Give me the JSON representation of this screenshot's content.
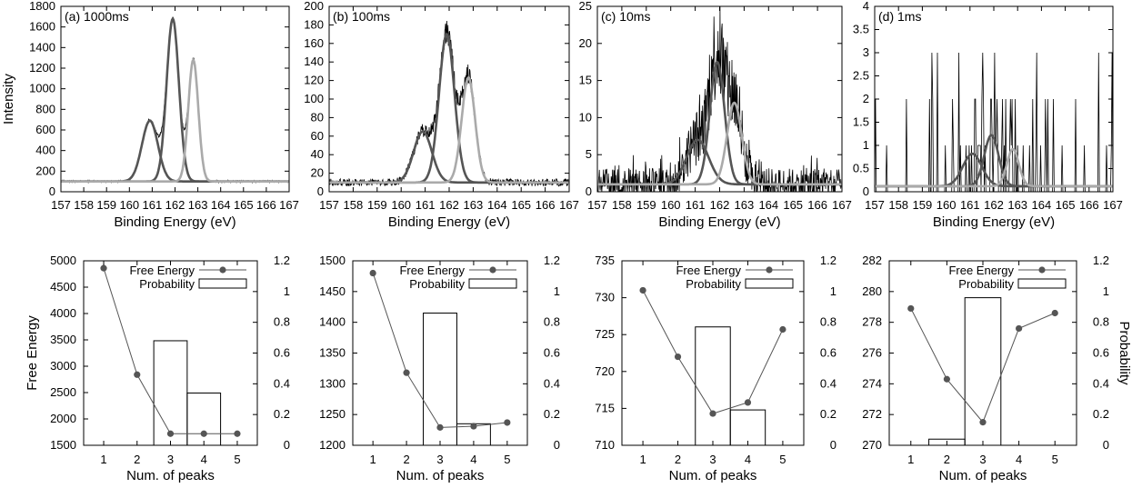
{
  "chart_data": [
    {
      "type": "line",
      "title": "(a) 1000ms",
      "xlabel": "Binding Energy (eV)",
      "ylabel": "Intensity",
      "xlim": [
        157,
        167
      ],
      "ylim": [
        0,
        1800
      ],
      "xticks": [
        157,
        158,
        159,
        160,
        161,
        162,
        163,
        164,
        165,
        166,
        167
      ],
      "yticks": [
        0,
        200,
        400,
        600,
        800,
        1000,
        1200,
        1400,
        1600,
        1800
      ],
      "grid": false,
      "baseline": 100,
      "components": [
        {
          "center": 160.9,
          "amplitude": 590,
          "sigma": 0.35,
          "color": "#555555"
        },
        {
          "center": 161.9,
          "amplitude": 1580,
          "sigma": 0.27,
          "color": "#555555"
        },
        {
          "center": 162.8,
          "amplitude": 1180,
          "sigma": 0.22,
          "color": "#aaaaaa"
        }
      ],
      "noise": 10
    },
    {
      "type": "line",
      "title": "(b) 100ms",
      "xlabel": "Binding Energy (eV)",
      "ylabel": "",
      "xlim": [
        157,
        167
      ],
      "ylim": [
        0,
        200
      ],
      "xticks": [
        157,
        158,
        159,
        160,
        161,
        162,
        163,
        164,
        165,
        166,
        167
      ],
      "yticks": [
        0,
        20,
        40,
        60,
        80,
        100,
        120,
        140,
        160,
        180,
        200
      ],
      "grid": false,
      "baseline": 10,
      "components": [
        {
          "center": 160.9,
          "amplitude": 55,
          "sigma": 0.38,
          "color": "#555555"
        },
        {
          "center": 161.9,
          "amplitude": 160,
          "sigma": 0.32,
          "color": "#555555"
        },
        {
          "center": 162.8,
          "amplitude": 113,
          "sigma": 0.28,
          "color": "#aaaaaa"
        }
      ],
      "noise": 4
    },
    {
      "type": "line",
      "title": "(c) 10ms",
      "xlabel": "Binding Energy (eV)",
      "ylabel": "",
      "xlim": [
        157,
        167
      ],
      "ylim": [
        0,
        25
      ],
      "xticks": [
        157,
        158,
        159,
        160,
        161,
        162,
        163,
        164,
        165,
        166,
        167
      ],
      "yticks": [
        0,
        5,
        10,
        15,
        20,
        25
      ],
      "grid": false,
      "baseline": 1,
      "components": [
        {
          "center": 161.1,
          "amplitude": 6,
          "sigma": 0.45,
          "color": "#555555"
        },
        {
          "center": 161.9,
          "amplitude": 16.5,
          "sigma": 0.3,
          "color": "#555555"
        },
        {
          "center": 162.6,
          "amplitude": 11,
          "sigma": 0.3,
          "color": "#aaaaaa"
        }
      ],
      "noise": 2.2
    },
    {
      "type": "line",
      "title": "(d) 1ms",
      "xlabel": "Binding Energy (eV)",
      "ylabel": "",
      "xlim": [
        157,
        167
      ],
      "ylim": [
        0,
        4
      ],
      "xticks": [
        157,
        158,
        159,
        160,
        161,
        162,
        163,
        164,
        165,
        166,
        167
      ],
      "yticks": [
        0,
        0.5,
        1,
        1.5,
        2,
        2.5,
        3,
        3.5,
        4
      ],
      "grid": false,
      "baseline": 0.12,
      "components": [
        {
          "center": 161.1,
          "amplitude": 0.7,
          "sigma": 0.4,
          "color": "#555555"
        },
        {
          "center": 161.9,
          "amplitude": 1.1,
          "sigma": 0.3,
          "color": "#555555"
        },
        {
          "center": 162.8,
          "amplitude": 0.8,
          "sigma": 0.25,
          "color": "#aaaaaa"
        }
      ],
      "noise": 0
    },
    {
      "type": "bar+line",
      "xlabel": "Num. of peaks",
      "ylabel": "Free Energy",
      "y2label": "",
      "x": [
        1,
        2,
        3,
        4,
        5
      ],
      "ylim": [
        1500,
        5000
      ],
      "yticks": [
        1500,
        2000,
        2500,
        3000,
        3500,
        4000,
        4500,
        5000
      ],
      "y2lim": [
        0,
        1.2
      ],
      "y2ticks": [
        0,
        0.2,
        0.4,
        0.6,
        0.8,
        1,
        1.2
      ],
      "legend": {
        "position": "top-right",
        "entries": [
          "Free Energy",
          "Probability"
        ]
      },
      "series": [
        {
          "name": "Free Energy",
          "type": "line",
          "values": [
            4860,
            2840,
            1720,
            1720,
            1720
          ]
        },
        {
          "name": "Probability",
          "type": "bar",
          "values": [
            0,
            0,
            0.68,
            0.34,
            0
          ]
        }
      ]
    },
    {
      "type": "bar+line",
      "xlabel": "Num. of peaks",
      "ylabel": "",
      "y2label": "",
      "x": [
        1,
        2,
        3,
        4,
        5
      ],
      "ylim": [
        1200,
        1500
      ],
      "yticks": [
        1200,
        1250,
        1300,
        1350,
        1400,
        1450,
        1500
      ],
      "y2lim": [
        0,
        1.2
      ],
      "y2ticks": [
        0,
        0.2,
        0.4,
        0.6,
        0.8,
        1,
        1.2
      ],
      "legend": {
        "position": "top-right",
        "entries": [
          "Free Energy",
          "Probability"
        ]
      },
      "series": [
        {
          "name": "Free Energy",
          "type": "line",
          "values": [
            1480,
            1318,
            1229,
            1231,
            1237
          ]
        },
        {
          "name": "Probability",
          "type": "bar",
          "values": [
            0,
            0,
            0.86,
            0.14,
            0
          ]
        }
      ]
    },
    {
      "type": "bar+line",
      "xlabel": "Num. of peaks",
      "ylabel": "",
      "y2label": "",
      "x": [
        1,
        2,
        3,
        4,
        5
      ],
      "ylim": [
        710,
        735
      ],
      "yticks": [
        710,
        715,
        720,
        725,
        730,
        735
      ],
      "y2lim": [
        0,
        1.2
      ],
      "y2ticks": [
        0,
        0.2,
        0.4,
        0.6,
        0.8,
        1,
        1.2
      ],
      "legend": {
        "position": "top-right",
        "entries": [
          "Free Energy",
          "Probability"
        ]
      },
      "series": [
        {
          "name": "Free Energy",
          "type": "line",
          "values": [
            731,
            722,
            714.3,
            715.8,
            725.7
          ]
        },
        {
          "name": "Probability",
          "type": "bar",
          "values": [
            0,
            0,
            0.77,
            0.23,
            0
          ]
        }
      ]
    },
    {
      "type": "bar+line",
      "xlabel": "Num. of peaks",
      "ylabel": "",
      "y2label": "Probability",
      "x": [
        1,
        2,
        3,
        4,
        5
      ],
      "ylim": [
        270,
        282
      ],
      "yticks": [
        270,
        272,
        274,
        276,
        278,
        280,
        282
      ],
      "y2lim": [
        0,
        1.2
      ],
      "y2ticks": [
        0,
        0.2,
        0.4,
        0.6,
        0.8,
        1,
        1.2
      ],
      "legend": {
        "position": "top-right",
        "entries": [
          "Free Energy",
          "Probability"
        ]
      },
      "series": [
        {
          "name": "Free Energy",
          "type": "line",
          "values": [
            278.9,
            274.3,
            271.5,
            277.6,
            278.6
          ]
        },
        {
          "name": "Probability",
          "type": "bar",
          "values": [
            0,
            0.04,
            0.96,
            0,
            0
          ]
        }
      ]
    }
  ]
}
